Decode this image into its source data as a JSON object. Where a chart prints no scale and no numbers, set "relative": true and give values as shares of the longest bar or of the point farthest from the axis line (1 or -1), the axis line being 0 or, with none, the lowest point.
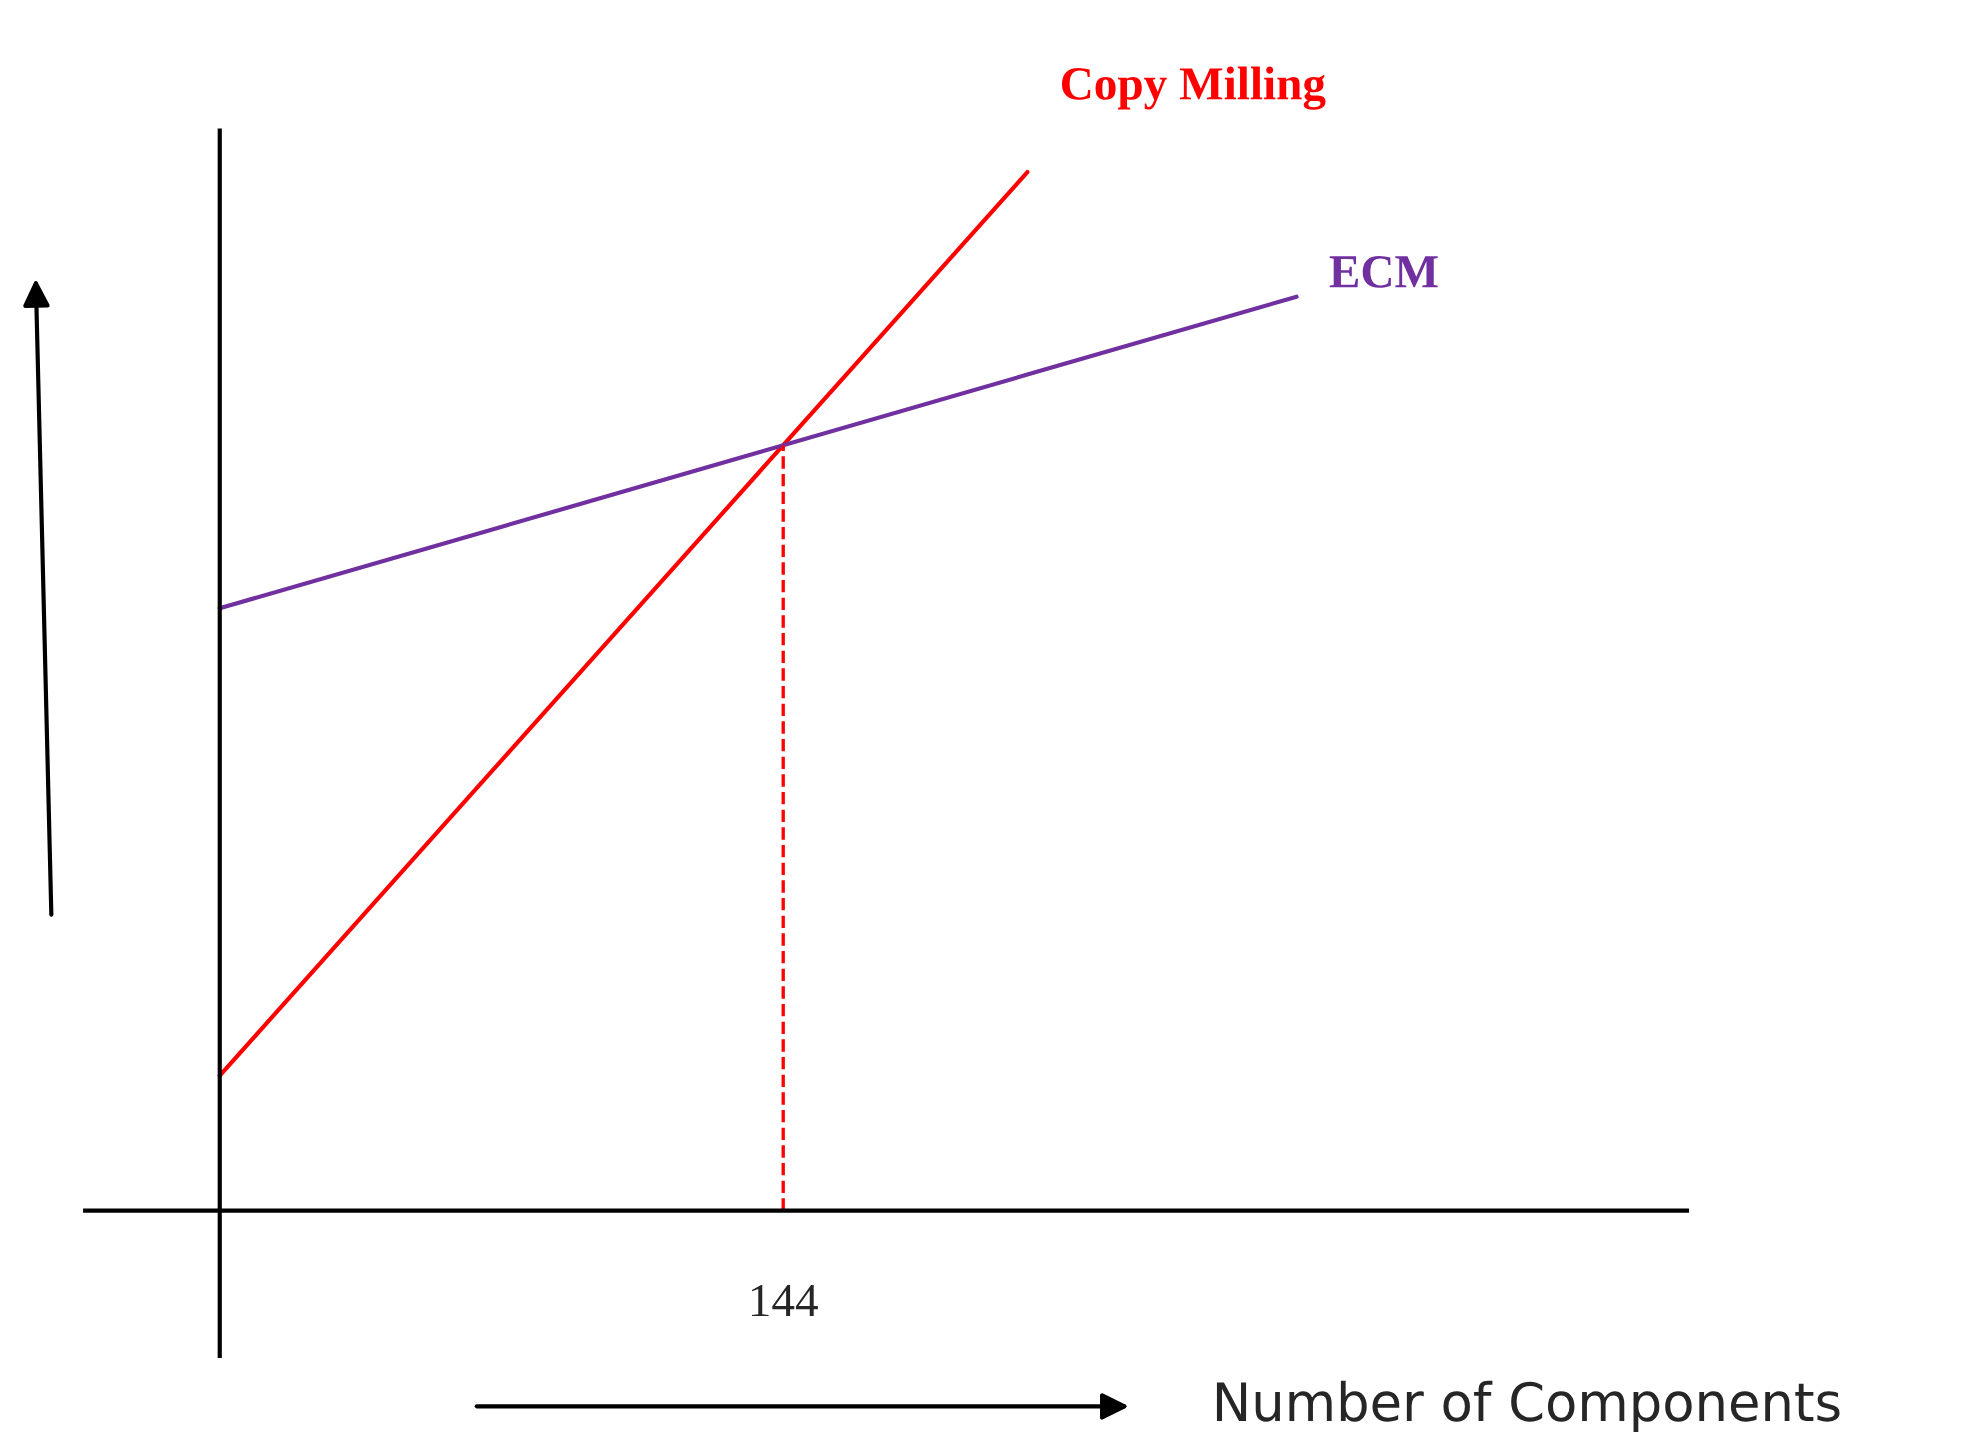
{
  "chart_data": {
    "type": "line",
    "relative": true,
    "xlabel": "Number of Components",
    "categories": [
      null,
      null,
      null,
      null,
      null
    ],
    "series": [
      {
        "name": "Copy Milling",
        "color": "#ff0000",
        "values": [
          0.13,
          0.42,
          0.71,
          1,
          null
        ]
      },
      {
        "name": "ECM",
        "color": "#7030a0",
        "values": [
          0.58,
          0.655,
          0.73,
          0.805,
          0.88
        ]
      }
    ],
    "annotations": [
      "144"
    ]
  }
}
